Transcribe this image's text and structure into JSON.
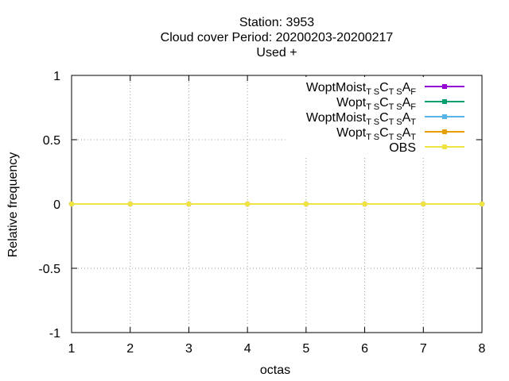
{
  "chart_data": {
    "type": "line",
    "title_lines": [
      "Station:     3953",
      "Cloud cover  Period: 20200203-20200217",
      "Used   +"
    ],
    "xlabel": "octas",
    "ylabel": "Relative frequency",
    "xlim": [
      1,
      8
    ],
    "ylim": [
      -1,
      1
    ],
    "x_ticks": [
      "1",
      "2",
      "3",
      "4",
      "5",
      "6",
      "7",
      "8"
    ],
    "y_ticks": [
      "1",
      "0.5",
      "0",
      "-0.5",
      "-1"
    ],
    "grid": true,
    "legend_position": "top-right",
    "x": [
      1,
      2,
      3,
      4,
      5,
      6,
      7,
      8
    ],
    "series": [
      {
        "legend": {
          "main": "WoptMoist",
          "s1": "T S",
          "m2": "C",
          "s2": "T S",
          "m3": "A",
          "s3": "F"
        },
        "color": "#9400d3",
        "values": [
          0,
          0,
          0,
          0,
          0,
          0,
          0,
          0
        ]
      },
      {
        "legend": {
          "main": "Wopt",
          "s1": "T S",
          "m2": "C",
          "s2": "T S",
          "m3": "A",
          "s3": "F"
        },
        "color": "#009e73",
        "values": [
          0,
          0,
          0,
          0,
          0,
          0,
          0,
          0
        ]
      },
      {
        "legend": {
          "main": "WoptMoist",
          "s1": "T S",
          "m2": "C",
          "s2": "T S",
          "m3": "A",
          "s3": "T"
        },
        "color": "#56b4e9",
        "values": [
          0,
          0,
          0,
          0,
          0,
          0,
          0,
          0
        ]
      },
      {
        "legend": {
          "main": "Wopt",
          "s1": "T S",
          "m2": "C",
          "s2": "T S",
          "m3": "A",
          "s3": "T"
        },
        "color": "#e69f00",
        "values": [
          0,
          0,
          0,
          0,
          0,
          0,
          0,
          0
        ]
      },
      {
        "legend": {
          "main": "OBS",
          "s1": "",
          "m2": "",
          "s2": "",
          "m3": "",
          "s3": ""
        },
        "color": "#f0e442",
        "values": [
          0,
          0,
          0,
          0,
          0,
          0,
          0,
          0
        ]
      }
    ]
  }
}
